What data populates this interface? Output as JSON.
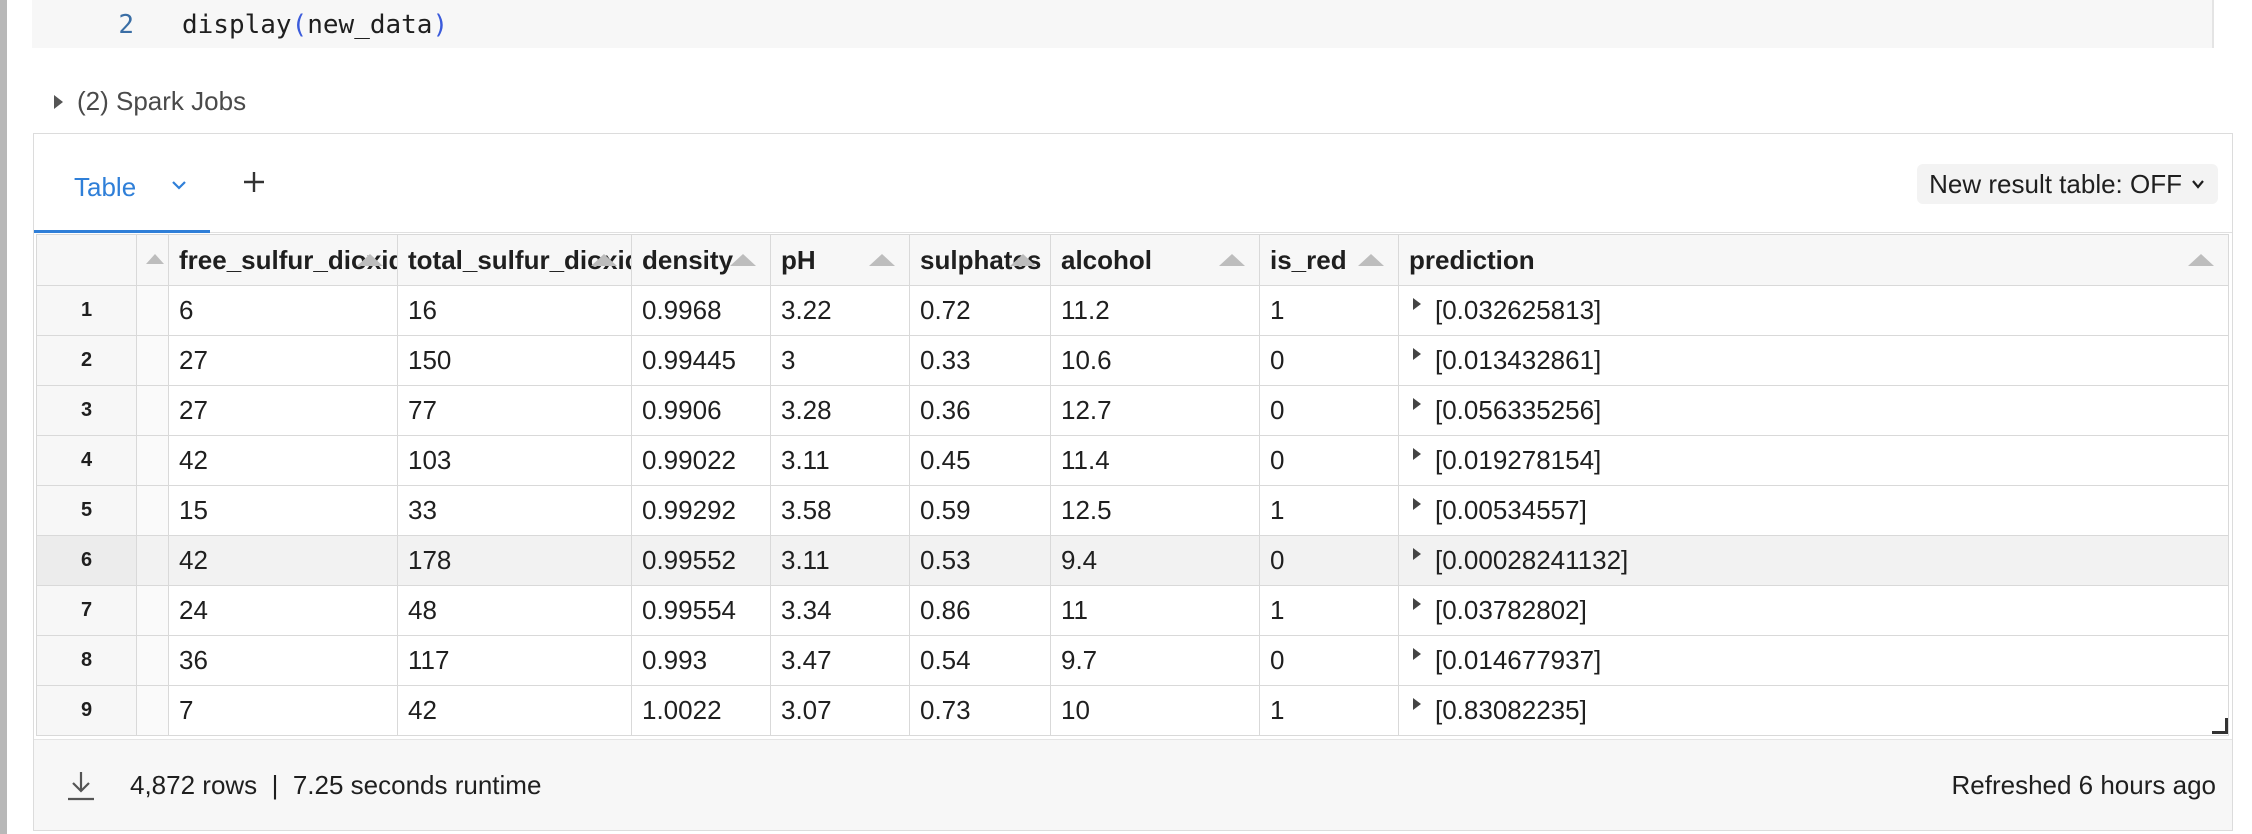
{
  "code_cell": {
    "line_number": "2",
    "code_fn": "display",
    "code_open": "(",
    "code_arg": "new_data",
    "code_close": ")"
  },
  "spark_jobs": {
    "label": "(2) Spark Jobs"
  },
  "tabs": {
    "active_label": "Table",
    "new_result_toggle": "New result table: OFF"
  },
  "table": {
    "columns": [
      "free_sulfur_dioxide",
      "total_sulfur_dioxide",
      "density",
      "pH",
      "sulphates",
      "alcohol",
      "is_red",
      "prediction"
    ],
    "rows": [
      {
        "n": "1",
        "cells": [
          "6",
          "16",
          "0.9968",
          "3.22",
          "0.72",
          "11.2",
          "1",
          "[0.032625813]"
        ]
      },
      {
        "n": "2",
        "cells": [
          "27",
          "150",
          "0.99445",
          "3",
          "0.33",
          "10.6",
          "0",
          "[0.013432861]"
        ]
      },
      {
        "n": "3",
        "cells": [
          "27",
          "77",
          "0.9906",
          "3.28",
          "0.36",
          "12.7",
          "0",
          "[0.056335256]"
        ]
      },
      {
        "n": "4",
        "cells": [
          "42",
          "103",
          "0.99022",
          "3.11",
          "0.45",
          "11.4",
          "0",
          "[0.019278154]"
        ]
      },
      {
        "n": "5",
        "cells": [
          "15",
          "33",
          "0.99292",
          "3.58",
          "0.59",
          "12.5",
          "1",
          "[0.00534557]"
        ]
      },
      {
        "n": "6",
        "cells": [
          "42",
          "178",
          "0.99552",
          "3.11",
          "0.53",
          "9.4",
          "0",
          "[0.00028241132]"
        ]
      },
      {
        "n": "7",
        "cells": [
          "24",
          "48",
          "0.99554",
          "3.34",
          "0.86",
          "11",
          "1",
          "[0.03782802]"
        ]
      },
      {
        "n": "8",
        "cells": [
          "36",
          "117",
          "0.993",
          "3.47",
          "0.54",
          "9.7",
          "0",
          "[0.014677937]"
        ]
      },
      {
        "n": "9",
        "cells": [
          "7",
          "42",
          "1.0022",
          "3.07",
          "0.73",
          "10",
          "1",
          "[0.83082235]"
        ]
      }
    ]
  },
  "footer": {
    "stats": "4,872 rows  |  7.25 seconds runtime",
    "refreshed": "Refreshed 6 hours ago"
  },
  "colors": {
    "accent": "#2f7fd8",
    "paren": "#3b5bdb",
    "line_number": "#3a6ea5"
  },
  "icons": [
    "caret-right-icon",
    "chevron-down-icon",
    "plus-icon",
    "sort-asc-icon",
    "expand-arrow-icon",
    "download-icon",
    "resize-handle-icon"
  ]
}
